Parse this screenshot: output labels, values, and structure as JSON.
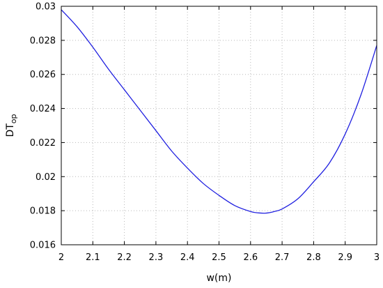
{
  "chart_data": {
    "type": "line",
    "title": "",
    "xlabel": "w(m)",
    "ylabel": {
      "main": "DT",
      "subscript": "op"
    },
    "xlim": [
      2,
      3
    ],
    "ylim": [
      0.016,
      0.03
    ],
    "x_ticks": [
      2,
      2.1,
      2.2,
      2.3,
      2.4,
      2.5,
      2.6,
      2.7,
      2.8,
      2.9,
      3
    ],
    "x_tick_labels": [
      "2",
      "2.1",
      "2.2",
      "2.3",
      "2.4",
      "2.5",
      "2.6",
      "2.7",
      "2.8",
      "2.9",
      "3"
    ],
    "y_ticks": [
      0.016,
      0.018,
      0.02,
      0.022,
      0.024,
      0.026,
      0.028,
      0.03
    ],
    "y_tick_labels": [
      "0.016",
      "0.018",
      "0.02",
      "0.022",
      "0.024",
      "0.026",
      "0.028",
      "0.03"
    ],
    "grid": true,
    "legend": "none",
    "series": [
      {
        "color": "#1f1fe0",
        "x": [
          2.0,
          2.05,
          2.1,
          2.15,
          2.2,
          2.25,
          2.3,
          2.35,
          2.4,
          2.45,
          2.5,
          2.55,
          2.6,
          2.625,
          2.65,
          2.675,
          2.7,
          2.75,
          2.8,
          2.85,
          2.9,
          2.95,
          3.0
        ],
        "y": [
          0.0298,
          0.0288,
          0.0276,
          0.0263,
          0.0251,
          0.0239,
          0.0227,
          0.0215,
          0.0205,
          0.0196,
          0.0189,
          0.0183,
          0.01795,
          0.01787,
          0.01786,
          0.01795,
          0.0181,
          0.0187,
          0.0197,
          0.0208,
          0.0225,
          0.0248,
          0.0277
        ]
      }
    ]
  }
}
